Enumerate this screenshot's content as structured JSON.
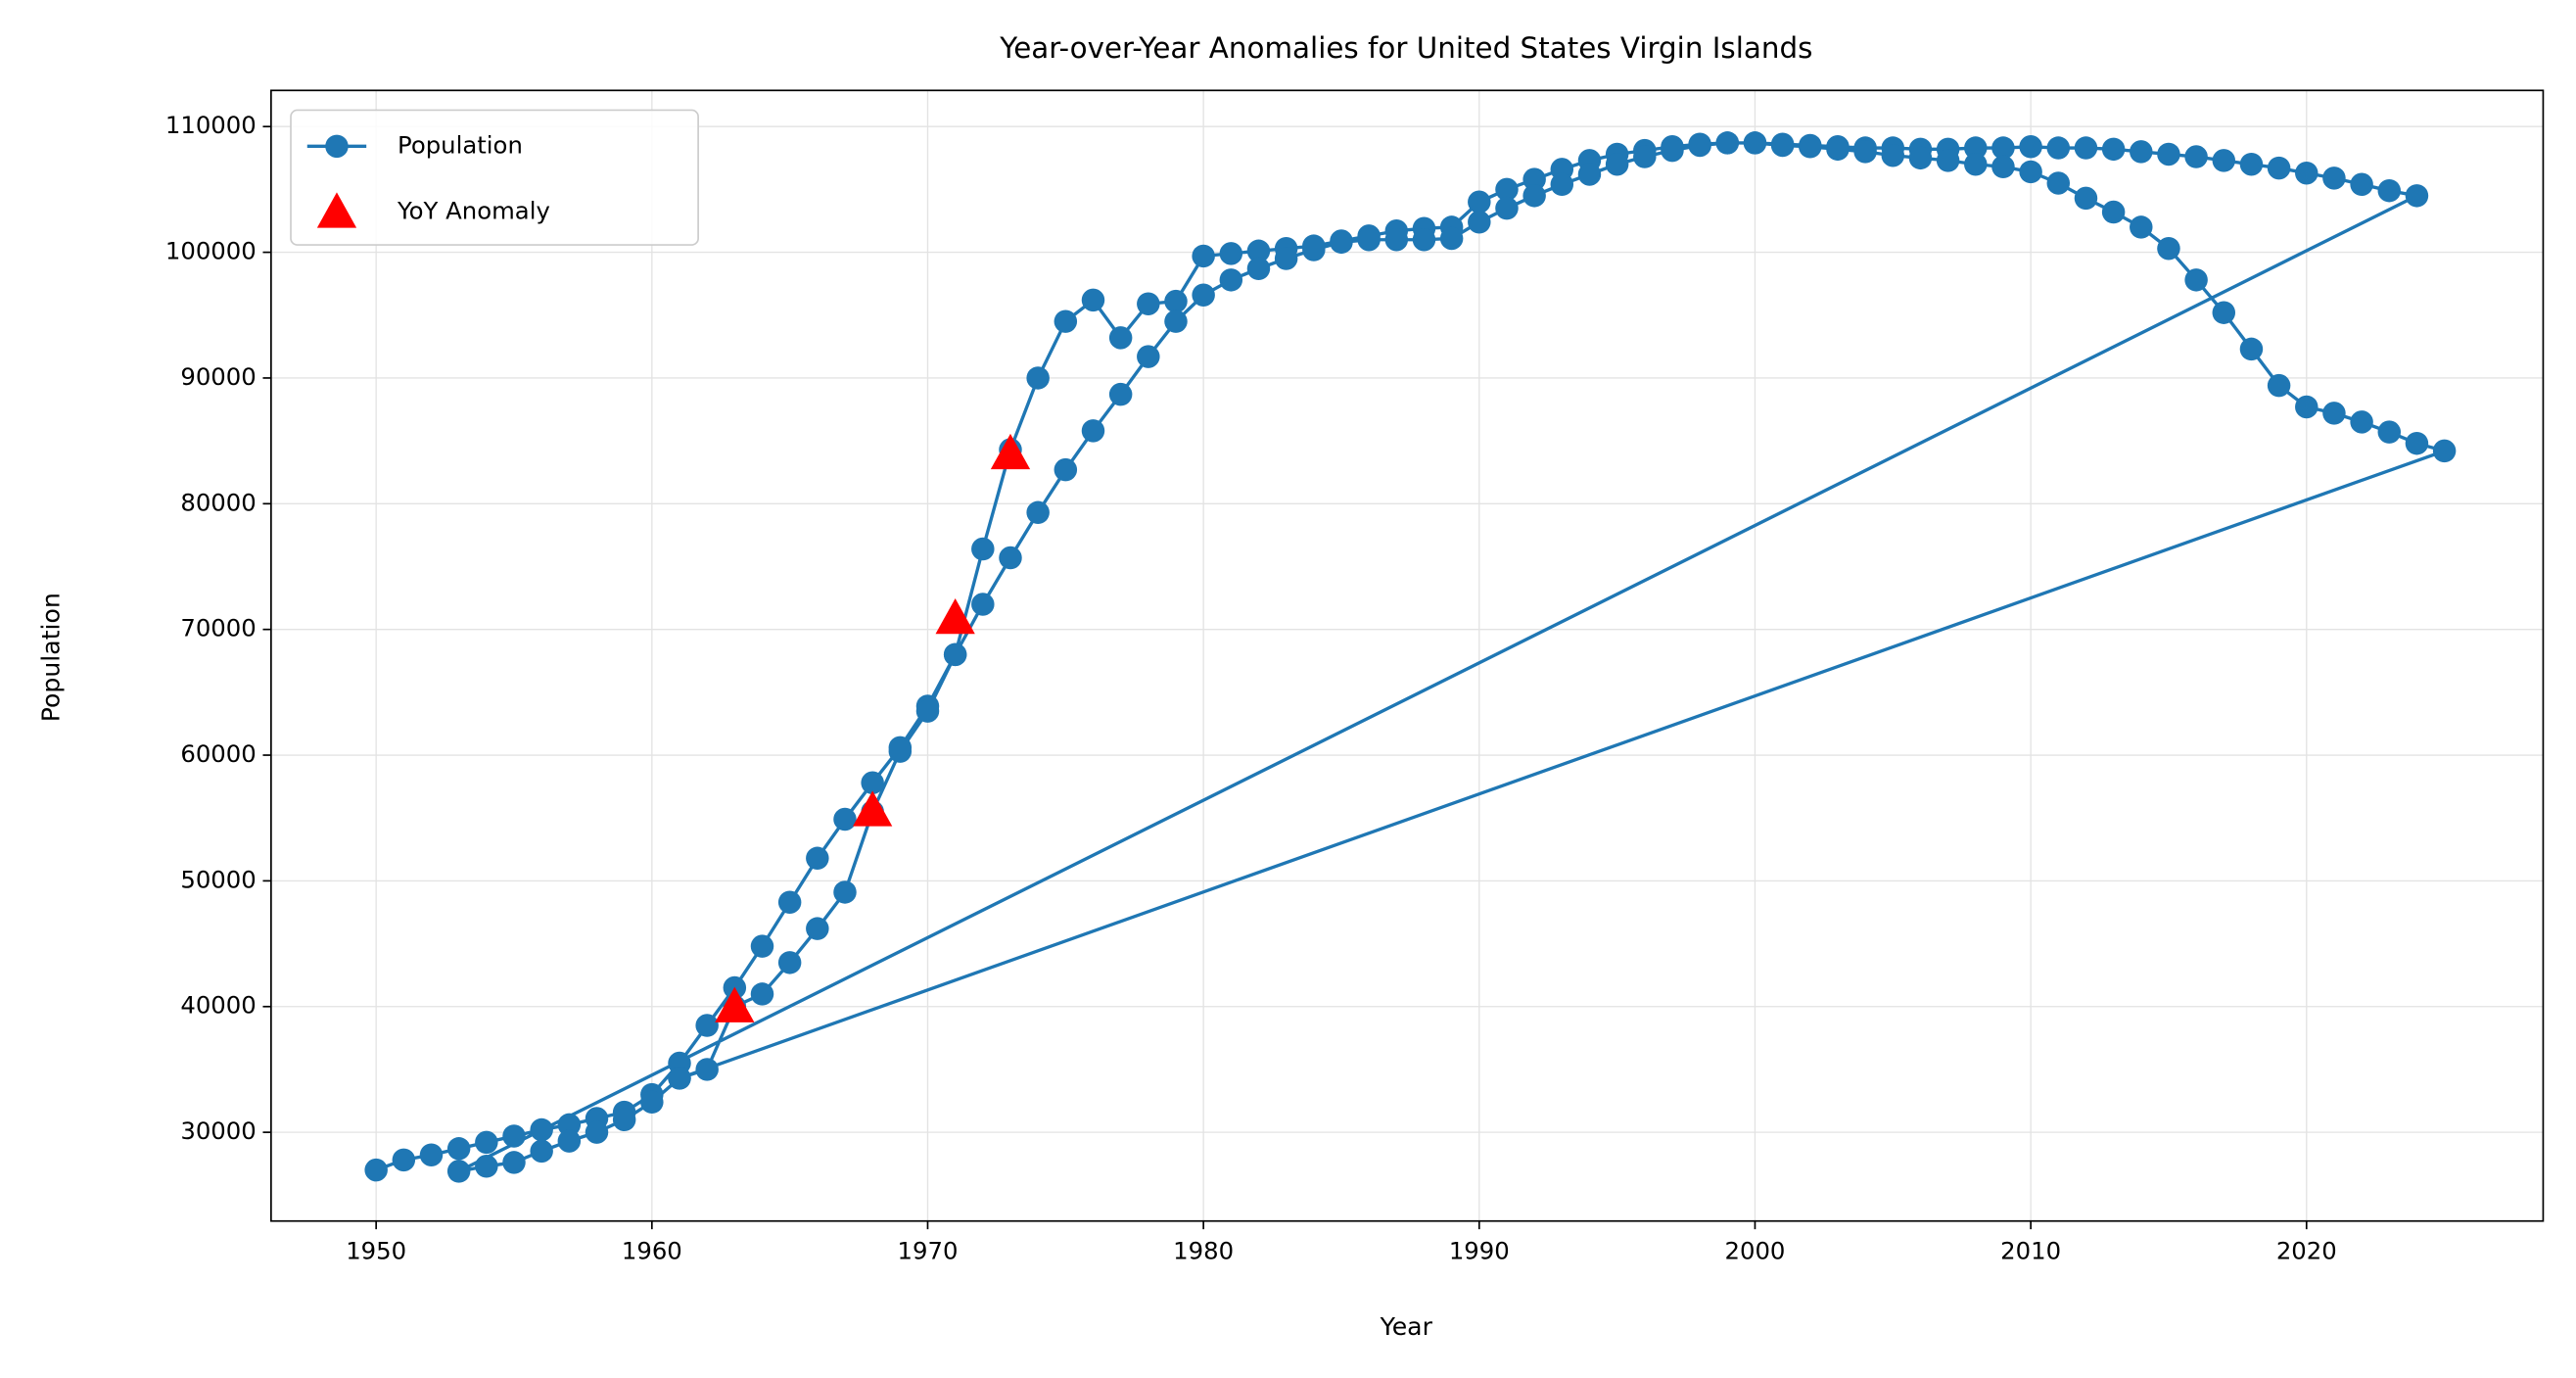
{
  "chart_data": {
    "type": "line",
    "title": "Year-over-Year Anomalies for United States Virgin Islands",
    "x_label": "Year",
    "y_label": "Population",
    "xlim": [
      1946.19,
      2028.58
    ],
    "ylim": [
      22941,
      112876
    ],
    "xticks": [
      1950,
      1960,
      1970,
      1980,
      1990,
      2000,
      2010,
      2020
    ],
    "yticks": [
      30000,
      40000,
      50000,
      60000,
      70000,
      80000,
      90000,
      100000,
      110000
    ],
    "grid": true,
    "legend": "upper left",
    "series": [
      {
        "name": "Population",
        "color": "#1f77b4",
        "x": [
          1950,
          1951,
          1952,
          1953,
          1954,
          1955,
          1956,
          1957,
          1958,
          1959,
          1960,
          1961,
          1962,
          1963,
          1964,
          1965,
          1966,
          1967,
          1968,
          1969,
          1970,
          1971,
          1972,
          1973,
          1974,
          1975,
          1976,
          1977,
          1978,
          1979,
          1980,
          1981,
          1982,
          1983,
          1984,
          1985,
          1986,
          1987,
          1988,
          1989,
          1990,
          1991,
          1992,
          1993,
          1994,
          1995,
          1996,
          1997,
          1998,
          1999,
          2000,
          2001,
          2002,
          2003,
          2004,
          2005,
          2006,
          2007,
          2008,
          2009,
          2010,
          2011,
          2012,
          2013,
          2014,
          2015,
          2016,
          2017,
          2018,
          2019,
          2020,
          2021,
          2022,
          2023,
          2024,
          1953,
          1954,
          1955,
          1956,
          1957,
          1958,
          1959,
          1960,
          1961,
          1962,
          1963,
          1964,
          1965,
          1966,
          1967,
          1968,
          1969,
          1970,
          1971,
          1972,
          1973,
          1974,
          1975,
          1976,
          1977,
          1978,
          1979,
          1980,
          1981,
          1982,
          1983,
          1984,
          1985,
          1986,
          1987,
          1988,
          1989,
          1990,
          1991,
          1992,
          1993,
          1994,
          1995,
          1996,
          1997,
          1998,
          1999,
          2000,
          2001,
          2002,
          2003,
          2004,
          2005,
          2006,
          2007,
          2008,
          2009,
          2010,
          2011,
          2012,
          2013,
          2014,
          2015,
          2016,
          2017,
          2018,
          2019,
          2020,
          2021,
          2022,
          2023,
          2024,
          2025,
          1961
        ],
        "values": [
          27000,
          27800,
          28200,
          28700,
          29200,
          29700,
          30200,
          30600,
          31100,
          31600,
          33000,
          35500,
          38500,
          41500,
          44800,
          48300,
          51800,
          54900,
          57800,
          60600,
          63900,
          68000,
          76400,
          84300,
          90000,
          94500,
          96200,
          93200,
          95900,
          96100,
          99700,
          99900,
          100100,
          100300,
          100500,
          100900,
          101300,
          101700,
          101900,
          102000,
          104000,
          105000,
          105800,
          106600,
          107300,
          107800,
          108100,
          108400,
          108600,
          108700,
          108700,
          108600,
          108500,
          108400,
          108300,
          108300,
          108200,
          108200,
          108300,
          108300,
          108400,
          108300,
          108300,
          108200,
          108000,
          107800,
          107600,
          107300,
          107000,
          106700,
          106300,
          105900,
          105400,
          104900,
          104500,
          26900,
          27300,
          27600,
          28500,
          29300,
          30000,
          31000,
          32400,
          34300,
          35000,
          40000,
          41000,
          43500,
          46200,
          49100,
          55500,
          60300,
          63500,
          68000,
          72000,
          75700,
          79300,
          82700,
          85800,
          88700,
          91700,
          94500,
          96600,
          97800,
          98700,
          99500,
          100200,
          100800,
          101000,
          101000,
          101000,
          101100,
          102400,
          103500,
          104500,
          105400,
          106200,
          107000,
          107600,
          108100,
          108500,
          108700,
          108700,
          108500,
          108400,
          108200,
          108000,
          107700,
          107500,
          107300,
          107000,
          106800,
          106400,
          105500,
          104300,
          103200,
          102000,
          100300,
          97800,
          95200,
          92300,
          89400,
          87700,
          87200,
          86500,
          85700,
          84800,
          84200,
          34300
        ]
      },
      {
        "name": "YoY Anomaly",
        "type": "scatter",
        "color": "#ff0000",
        "x": [
          1963,
          1968,
          1971,
          1973
        ],
        "values": [
          40000,
          55600,
          70900,
          84000
        ]
      }
    ]
  }
}
